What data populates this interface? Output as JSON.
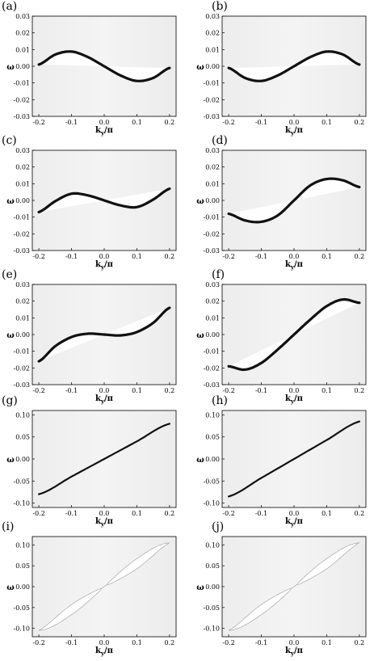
{
  "chart_data": [
    {
      "label": "(a)",
      "type": "line",
      "xlabel": "k",
      "xlabel_sub": "y",
      "xlabel_suffix": "/π",
      "ylabel": "ω",
      "xticks": [
        "-0.2",
        "-0.1",
        "0.0",
        "0.1",
        "0.2"
      ],
      "yticks": [
        "0.03",
        "0.02",
        "0.01",
        "0.00",
        "-0.01",
        "-0.02",
        "-0.03"
      ],
      "xlim": [
        -0.22,
        0.22
      ],
      "ylim": [
        -0.03,
        0.03
      ],
      "series": [
        {
          "kind": "dark-band",
          "x": [
            -0.2,
            -0.15,
            -0.1,
            -0.05,
            0,
            0.05,
            0.1,
            0.15,
            0.2
          ],
          "y": [
            0.001,
            0.007,
            0.0088,
            0.0055,
            0,
            -0.0055,
            -0.0088,
            -0.007,
            -0.001
          ]
        }
      ]
    },
    {
      "label": "(b)",
      "type": "line",
      "xlabel": "k",
      "xlabel_sub": "y",
      "xlabel_suffix": "/π",
      "ylabel": "ω",
      "xticks": [
        "-0.2",
        "-0.1",
        "0.0",
        "0.1",
        "0.2"
      ],
      "yticks": [
        "0.03",
        "0.02",
        "0.01",
        "0.00",
        "-0.01",
        "-0.02",
        "-0.03"
      ],
      "xlim": [
        -0.22,
        0.22
      ],
      "ylim": [
        -0.03,
        0.03
      ],
      "series": [
        {
          "kind": "dark-band",
          "x": [
            -0.2,
            -0.15,
            -0.1,
            -0.05,
            0,
            0.05,
            0.1,
            0.15,
            0.2
          ],
          "y": [
            -0.001,
            -0.007,
            -0.0088,
            -0.0055,
            0,
            0.0055,
            0.0088,
            0.007,
            0.001
          ]
        }
      ]
    },
    {
      "label": "(c)",
      "type": "line",
      "xlabel": "k",
      "xlabel_sub": "y",
      "xlabel_suffix": "/π",
      "ylabel": "ω",
      "xticks": [
        "-0.2",
        "-0.1",
        "0.0",
        "0.1",
        "0.2"
      ],
      "yticks": [
        "0.03",
        "0.02",
        "0.01",
        "0.00",
        "-0.01",
        "-0.02",
        "-0.03"
      ],
      "xlim": [
        -0.22,
        0.22
      ],
      "ylim": [
        -0.03,
        0.03
      ],
      "series": [
        {
          "kind": "dark-band",
          "x": [
            -0.2,
            -0.15,
            -0.1,
            -0.05,
            0,
            0.05,
            0.1,
            0.15,
            0.2
          ],
          "y": [
            -0.007,
            -0.0005,
            0.004,
            0.003,
            0,
            -0.003,
            -0.004,
            0.0005,
            0.007
          ]
        }
      ]
    },
    {
      "label": "(d)",
      "type": "line",
      "xlabel": "k",
      "xlabel_sub": "y",
      "xlabel_suffix": "/π",
      "ylabel": "ω",
      "xticks": [
        "-0.2",
        "-0.1",
        "0.0",
        "0.1",
        "0.2"
      ],
      "yticks": [
        "0.03",
        "0.02",
        "0.01",
        "0.00",
        "-0.01",
        "-0.02",
        "-0.03"
      ],
      "xlim": [
        -0.22,
        0.22
      ],
      "ylim": [
        -0.03,
        0.03
      ],
      "series": [
        {
          "kind": "dark-band",
          "x": [
            -0.2,
            -0.15,
            -0.1,
            -0.05,
            0,
            0.05,
            0.1,
            0.15,
            0.2
          ],
          "y": [
            -0.008,
            -0.012,
            -0.0128,
            -0.009,
            0,
            0.009,
            0.0128,
            0.012,
            0.008
          ]
        }
      ]
    },
    {
      "label": "(e)",
      "type": "line",
      "xlabel": "k",
      "xlabel_sub": "y",
      "xlabel_suffix": "/π",
      "ylabel": "ω",
      "xticks": [
        "-0.2",
        "-0.1",
        "0.0",
        "0.1",
        "0.2"
      ],
      "yticks": [
        "0.03",
        "0.02",
        "0.01",
        "0.00",
        "-0.01",
        "-0.02",
        "-0.03"
      ],
      "xlim": [
        -0.22,
        0.22
      ],
      "ylim": [
        -0.03,
        0.03
      ],
      "series": [
        {
          "kind": "dark-band",
          "x": [
            -0.2,
            -0.15,
            -0.1,
            -0.05,
            0,
            0.05,
            0.1,
            0.15,
            0.2
          ],
          "y": [
            -0.016,
            -0.007,
            -0.0015,
            0.0005,
            0,
            -0.0005,
            0.0015,
            0.007,
            0.016
          ]
        }
      ]
    },
    {
      "label": "(f)",
      "type": "line",
      "xlabel": "k",
      "xlabel_sub": "y",
      "xlabel_suffix": "/π",
      "ylabel": "ω",
      "xticks": [
        "-0.2",
        "-0.1",
        "0.0",
        "0.1",
        "0.2"
      ],
      "yticks": [
        "0.03",
        "0.02",
        "0.01",
        "0.00",
        "-0.01",
        "-0.02",
        "-0.03"
      ],
      "xlim": [
        -0.22,
        0.22
      ],
      "ylim": [
        -0.03,
        0.03
      ],
      "series": [
        {
          "kind": "dark-band",
          "x": [
            -0.2,
            -0.15,
            -0.1,
            -0.05,
            0,
            0.05,
            0.1,
            0.15,
            0.2
          ],
          "y": [
            -0.019,
            -0.021,
            -0.017,
            -0.009,
            0,
            0.009,
            0.017,
            0.021,
            0.019
          ]
        }
      ]
    },
    {
      "label": "(g)",
      "type": "line",
      "xlabel": "k",
      "xlabel_sub": "y",
      "xlabel_suffix": "/π",
      "ylabel": "ω",
      "xticks": [
        "-0.2",
        "-0.1",
        "0.0",
        "0.1",
        "0.2"
      ],
      "yticks": [
        "0.10",
        "0.05",
        "0.00",
        "-0.05",
        "-0.10"
      ],
      "xlim": [
        -0.22,
        0.22
      ],
      "ylim": [
        -0.11,
        0.11
      ],
      "series": [
        {
          "kind": "dark-band",
          "x": [
            -0.2,
            -0.1,
            0,
            0.1,
            0.2
          ],
          "y": [
            -0.08,
            -0.04,
            0,
            0.04,
            0.08
          ]
        }
      ]
    },
    {
      "label": "(h)",
      "type": "line",
      "xlabel": "k",
      "xlabel_sub": "y",
      "xlabel_suffix": "/π",
      "ylabel": "ω",
      "xticks": [
        "-0.2",
        "-0.1",
        "0.0",
        "0.1",
        "0.2"
      ],
      "yticks": [
        "0.10",
        "0.05",
        "0.00",
        "-0.05",
        "-0.10"
      ],
      "xlim": [
        -0.22,
        0.22
      ],
      "ylim": [
        -0.11,
        0.11
      ],
      "series": [
        {
          "kind": "dark-band",
          "x": [
            -0.2,
            -0.1,
            0,
            0.1,
            0.2
          ],
          "y": [
            -0.085,
            -0.043,
            0,
            0.043,
            0.085
          ]
        }
      ]
    },
    {
      "label": "(i)",
      "type": "line",
      "xlabel": "k",
      "xlabel_sub": "y",
      "xlabel_suffix": "/π",
      "ylabel": "ω",
      "xticks": [
        "-0.2",
        "-0.1",
        "0.0",
        "0.1",
        "0.2"
      ],
      "yticks": [
        "0.10",
        "0.05",
        "0.00",
        "-0.05",
        "-0.10"
      ],
      "xlim": [
        -0.22,
        0.22
      ],
      "ylim": [
        -0.12,
        0.12
      ],
      "series": [
        {
          "kind": "white-lobe",
          "x": [
            -0.2,
            -0.1,
            0,
            0.1,
            0.2
          ],
          "y": [
            -0.105,
            -0.055,
            0,
            0.055,
            0.105
          ]
        }
      ]
    },
    {
      "label": "(j)",
      "type": "line",
      "xlabel": "k",
      "xlabel_sub": "y",
      "xlabel_suffix": "/π",
      "ylabel": "ω",
      "xticks": [
        "-0.2",
        "-0.1",
        "0.0",
        "0.1",
        "0.2"
      ],
      "yticks": [
        "0.10",
        "0.05",
        "0.00",
        "-0.05",
        "-0.10"
      ],
      "xlim": [
        -0.22,
        0.22
      ],
      "ylim": [
        -0.12,
        0.12
      ],
      "series": [
        {
          "kind": "white-lobe",
          "x": [
            -0.2,
            -0.1,
            0,
            0.1,
            0.2
          ],
          "y": [
            -0.105,
            -0.055,
            0,
            0.055,
            0.105
          ]
        }
      ]
    }
  ]
}
